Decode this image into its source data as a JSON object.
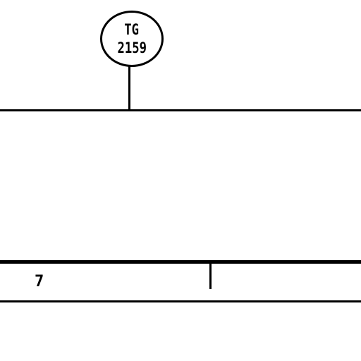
{
  "balloon": {
    "line1": "TG",
    "line2": "2159"
  },
  "table": {
    "row_number": "7"
  }
}
